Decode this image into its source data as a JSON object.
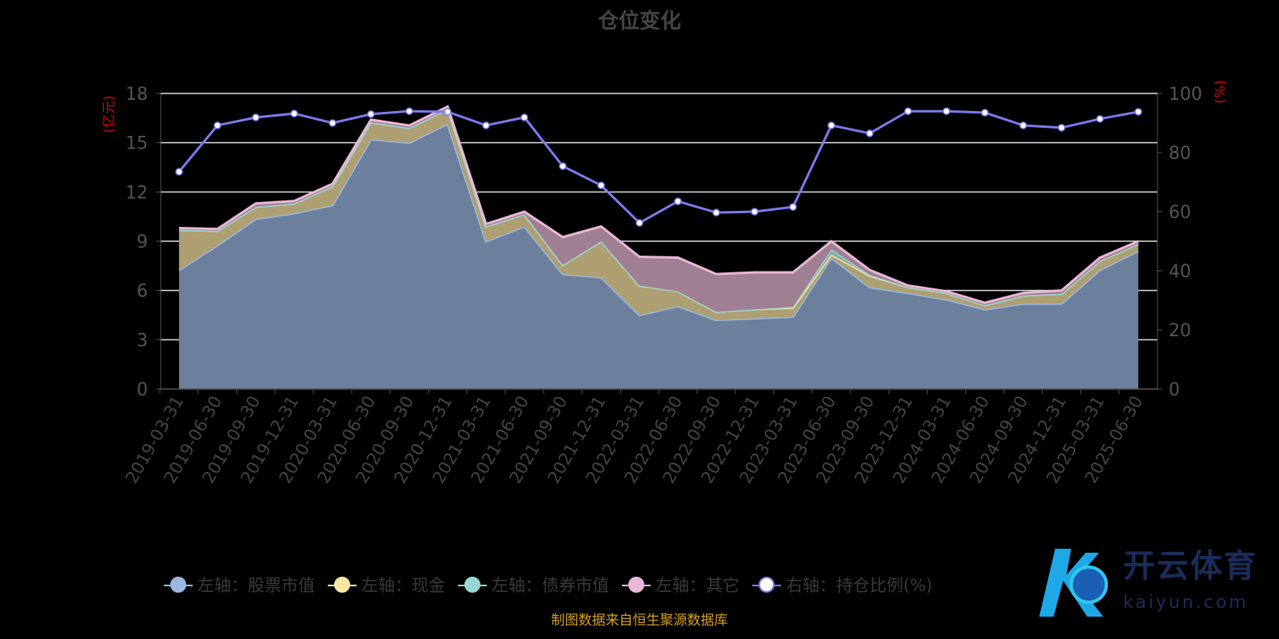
{
  "title": "仓位变化",
  "source": "制图数据来自恒生聚源数据库",
  "watermark": {
    "name": "开云体育",
    "url": "kaiyun.com"
  },
  "chart_data": {
    "type": "area",
    "title": "仓位变化",
    "left_axis": {
      "label": "(亿元)",
      "ticks": [
        "0",
        "3",
        "6",
        "9",
        "12",
        "15",
        "18"
      ],
      "range": [
        0,
        18
      ]
    },
    "right_axis": {
      "label": "(%)",
      "ticks": [
        "0",
        "20",
        "40",
        "60",
        "80",
        "100"
      ],
      "range": [
        0,
        100
      ]
    },
    "categories": [
      "2019-03-31",
      "2019-06-30",
      "2019-09-30",
      "2019-12-31",
      "2020-03-31",
      "2020-06-30",
      "2020-09-30",
      "2020-12-31",
      "2021-03-31",
      "2021-06-30",
      "2021-09-30",
      "2021-12-31",
      "2022-03-31",
      "2022-06-30",
      "2022-09-30",
      "2022-12-31",
      "2023-03-31",
      "2023-06-30",
      "2023-09-30",
      "2023-12-31",
      "2024-03-31",
      "2024-06-30",
      "2024-09-30",
      "2024-12-31",
      "2025-03-31",
      "2025-06-30"
    ],
    "series": [
      {
        "name": "左轴：股票市值",
        "axis": "left",
        "stack": true,
        "color": "#9bb8e2",
        "fill": "#6c7f9d",
        "values": [
          7.25,
          8.75,
          10.36,
          10.7,
          11.2,
          15.2,
          15.0,
          16.15,
          9.0,
          9.9,
          7.0,
          6.8,
          4.5,
          5.05,
          4.2,
          4.3,
          4.4,
          8.0,
          6.2,
          5.85,
          5.45,
          4.85,
          5.2,
          5.2,
          7.25,
          8.4
        ]
      },
      {
        "name": "左轴：现金",
        "axis": "left",
        "stack": true,
        "color": "#fbe6a4",
        "fill": "#ad9f72",
        "values": [
          2.45,
          0.88,
          0.74,
          0.6,
          1.15,
          1.05,
          0.9,
          0.9,
          0.9,
          0.75,
          0.55,
          2.2,
          1.8,
          0.9,
          0.5,
          0.55,
          0.55,
          0.2,
          0.7,
          0.35,
          0.4,
          0.25,
          0.5,
          0.6,
          0.55,
          0.45
        ]
      },
      {
        "name": "左轴：债券市值",
        "axis": "left",
        "stack": true,
        "color": "#9ad6d0",
        "fill": "#7fa9a4",
        "values": [
          0,
          0,
          0,
          0,
          0,
          0,
          0,
          0,
          0,
          0,
          0,
          0,
          0,
          0,
          0,
          0,
          0.05,
          0.3,
          0.05,
          0,
          0,
          0,
          0,
          0,
          0,
          0
        ]
      },
      {
        "name": "左轴：其它",
        "axis": "left",
        "stack": true,
        "color": "#e9b8d6",
        "fill": "#a07f92",
        "values": [
          0.1,
          0.12,
          0.2,
          0.15,
          0.15,
          0.15,
          0.15,
          0.15,
          0.15,
          0.15,
          1.7,
          0.9,
          1.75,
          2.05,
          2.3,
          2.25,
          2.1,
          0.5,
          0.3,
          0.1,
          0.1,
          0.15,
          0.15,
          0.2,
          0.2,
          0.15
        ]
      },
      {
        "name": "右轴：持仓比例(%)",
        "axis": "right",
        "stack": false,
        "color": "#7b7bf0",
        "values": [
          73.5,
          89.2,
          91.9,
          93.2,
          90.0,
          93.0,
          94.0,
          93.8,
          89.2,
          91.9,
          75.4,
          68.9,
          56.2,
          63.5,
          59.7,
          60.0,
          61.6,
          89.2,
          86.5,
          94.0,
          94.0,
          93.5,
          89.2,
          88.4,
          91.4,
          93.8
        ]
      }
    ],
    "grid": true,
    "legend_position": "bottom"
  }
}
